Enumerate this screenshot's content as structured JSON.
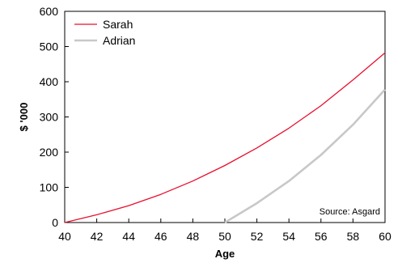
{
  "chart_data": {
    "type": "line",
    "xlabel": "Age",
    "ylabel": "$ '000",
    "xlim": [
      40,
      60
    ],
    "ylim": [
      0,
      600
    ],
    "x_ticks": [
      40,
      42,
      44,
      46,
      48,
      50,
      52,
      54,
      56,
      58,
      60
    ],
    "y_ticks": [
      0,
      100,
      200,
      300,
      400,
      500,
      600
    ],
    "grid": false,
    "legend": "top-left",
    "series": [
      {
        "name": "Sarah",
        "color": "#e8102e",
        "x": [
          40,
          42,
          44,
          46,
          48,
          50,
          52,
          54,
          56,
          58,
          60
        ],
        "y": [
          0,
          22,
          48,
          80,
          118,
          162,
          212,
          268,
          332,
          405,
          482
        ]
      },
      {
        "name": "Adrian",
        "color": "#c8c8c8",
        "x": [
          50,
          52,
          54,
          56,
          58,
          60
        ],
        "y": [
          0,
          55,
          118,
          192,
          278,
          378
        ]
      }
    ],
    "annotation": "Source: Asgard"
  }
}
